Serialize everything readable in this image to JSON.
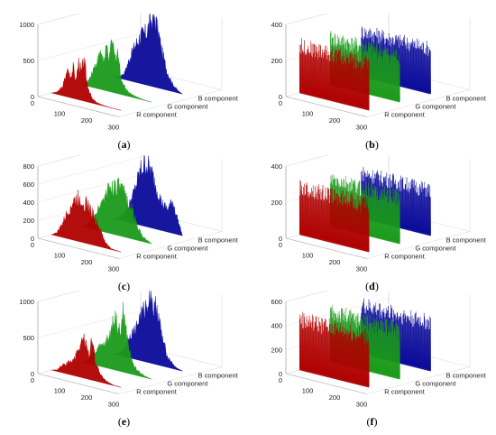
{
  "chart_data": [
    {
      "type": "area",
      "panel": "a",
      "caption": "(a)",
      "zlim": [
        0,
        1000
      ],
      "z_ticks": [
        "0",
        "500",
        "1000"
      ],
      "x_ticks": [
        "0",
        "100",
        "200",
        "300"
      ],
      "series": [
        {
          "name": "R component",
          "color": "#b00000",
          "x": [
            0,
            20,
            40,
            60,
            70,
            80,
            90,
            100,
            110,
            120,
            130,
            140,
            150,
            170,
            200,
            230,
            256
          ],
          "values": [
            0,
            30,
            120,
            380,
            300,
            420,
            250,
            520,
            380,
            560,
            300,
            150,
            60,
            20,
            5,
            0,
            0
          ]
        },
        {
          "name": "G component",
          "color": "#1a9a1a",
          "x": [
            0,
            20,
            40,
            60,
            70,
            80,
            90,
            100,
            110,
            120,
            130,
            140,
            150,
            170,
            200,
            230,
            256
          ],
          "values": [
            0,
            60,
            250,
            420,
            520,
            380,
            600,
            450,
            700,
            480,
            600,
            300,
            150,
            60,
            20,
            5,
            0
          ]
        },
        {
          "name": "B component",
          "color": "#0a0a9a",
          "x": [
            0,
            20,
            40,
            60,
            80,
            100,
            120,
            140,
            150,
            160,
            170,
            180,
            200,
            220,
            240,
            256
          ],
          "values": [
            0,
            20,
            80,
            300,
            500,
            650,
            700,
            900,
            980,
            850,
            700,
            500,
            250,
            100,
            30,
            0
          ]
        }
      ]
    },
    {
      "type": "bar",
      "panel": "b",
      "caption": "(b)",
      "zlim": [
        0,
        400
      ],
      "z_ticks": [
        "0",
        "200",
        "400"
      ],
      "x_ticks": [
        "0",
        "100",
        "200",
        "300"
      ],
      "series": [
        {
          "name": "R component",
          "color": "#b00000",
          "level": 260
        },
        {
          "name": "G component",
          "color": "#1a9a1a",
          "level": 255
        },
        {
          "name": "B component",
          "color": "#0a0a9a",
          "level": 250
        }
      ]
    },
    {
      "type": "area",
      "panel": "c",
      "caption": "(c)",
      "zlim": [
        0,
        800
      ],
      "z_ticks": [
        "0",
        "200",
        "400",
        "600",
        "800"
      ],
      "x_ticks": [
        "0",
        "100",
        "200",
        "300"
      ],
      "series": [
        {
          "name": "R component",
          "color": "#b00000",
          "x": [
            0,
            20,
            40,
            60,
            80,
            100,
            120,
            140,
            160,
            180,
            200,
            220,
            256
          ],
          "values": [
            0,
            40,
            150,
            300,
            420,
            480,
            450,
            400,
            300,
            180,
            60,
            10,
            0
          ]
        },
        {
          "name": "G component",
          "color": "#1a9a1a",
          "x": [
            0,
            20,
            40,
            60,
            80,
            100,
            120,
            140,
            160,
            180,
            200,
            220,
            256
          ],
          "values": [
            0,
            30,
            120,
            250,
            380,
            500,
            550,
            520,
            450,
            350,
            180,
            60,
            0
          ]
        },
        {
          "name": "B component",
          "color": "#0a0a9a",
          "x": [
            0,
            20,
            40,
            60,
            80,
            100,
            120,
            140,
            160,
            180,
            200,
            220,
            240,
            256
          ],
          "values": [
            0,
            20,
            80,
            200,
            380,
            600,
            700,
            620,
            450,
            300,
            250,
            350,
            150,
            0
          ]
        }
      ]
    },
    {
      "type": "bar",
      "panel": "d",
      "caption": "(d)",
      "zlim": [
        0,
        400
      ],
      "z_ticks": [
        "0",
        "200",
        "400"
      ],
      "x_ticks": [
        "0",
        "100",
        "200",
        "300"
      ],
      "series": [
        {
          "name": "R component",
          "color": "#b00000",
          "level": 260
        },
        {
          "name": "G component",
          "color": "#1a9a1a",
          "level": 255
        },
        {
          "name": "B component",
          "color": "#0a0a9a",
          "level": 250
        }
      ]
    },
    {
      "type": "area",
      "panel": "e",
      "caption": "(e)",
      "zlim": [
        0,
        1000
      ],
      "z_ticks": [
        "0",
        "500",
        "1000"
      ],
      "x_ticks": [
        "0",
        "100",
        "200",
        "300"
      ],
      "series": [
        {
          "name": "R component",
          "color": "#b00000",
          "x": [
            0,
            20,
            40,
            60,
            80,
            100,
            120,
            140,
            150,
            160,
            170,
            180,
            200,
            230,
            256
          ],
          "values": [
            0,
            20,
            100,
            150,
            200,
            380,
            550,
            350,
            600,
            300,
            200,
            100,
            40,
            5,
            0
          ]
        },
        {
          "name": "G component",
          "color": "#1a9a1a",
          "x": [
            0,
            20,
            40,
            60,
            80,
            100,
            120,
            140,
            150,
            160,
            170,
            180,
            200,
            230,
            256
          ],
          "values": [
            0,
            40,
            150,
            250,
            300,
            450,
            750,
            500,
            850,
            600,
            400,
            200,
            80,
            20,
            0
          ]
        },
        {
          "name": "B component",
          "color": "#0a0a9a",
          "x": [
            0,
            20,
            40,
            60,
            80,
            100,
            120,
            140,
            150,
            160,
            170,
            180,
            200,
            230,
            256
          ],
          "values": [
            0,
            20,
            100,
            300,
            400,
            600,
            750,
            1000,
            700,
            850,
            600,
            400,
            150,
            30,
            0
          ]
        }
      ]
    },
    {
      "type": "bar",
      "panel": "f",
      "caption": "(f)",
      "zlim": [
        0,
        600
      ],
      "z_ticks": [
        "0",
        "200",
        "400",
        "600"
      ],
      "x_ticks": [
        "0",
        "100",
        "200",
        "300"
      ],
      "series": [
        {
          "name": "R component",
          "color": "#b00000",
          "level": 420
        },
        {
          "name": "G component",
          "color": "#1a9a1a",
          "level": 410
        },
        {
          "name": "B component",
          "color": "#0a0a9a",
          "level": 400
        }
      ]
    }
  ]
}
